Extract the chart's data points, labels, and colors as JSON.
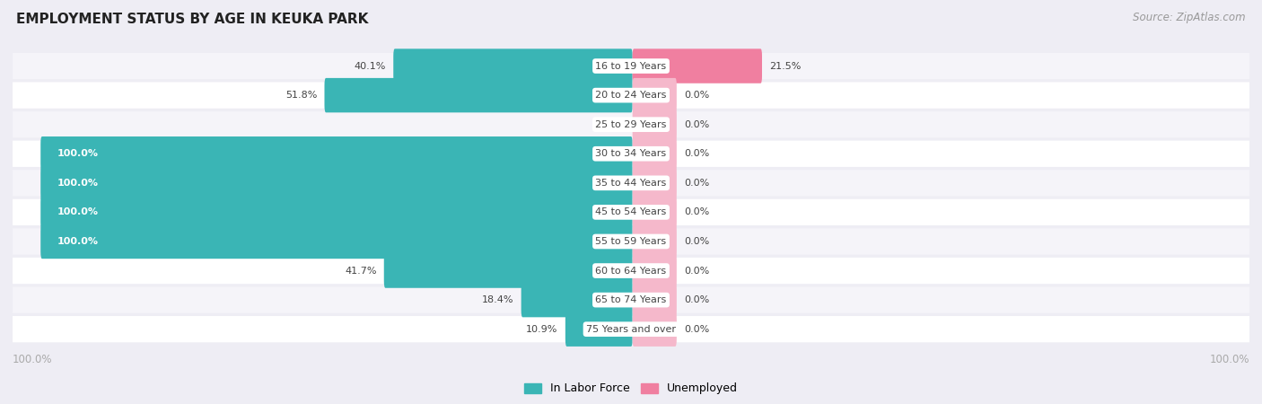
{
  "title": "EMPLOYMENT STATUS BY AGE IN KEUKA PARK",
  "source": "Source: ZipAtlas.com",
  "categories": [
    "16 to 19 Years",
    "20 to 24 Years",
    "25 to 29 Years",
    "30 to 34 Years",
    "35 to 44 Years",
    "45 to 54 Years",
    "55 to 59 Years",
    "60 to 64 Years",
    "65 to 74 Years",
    "75 Years and over"
  ],
  "labor_force": [
    40.1,
    51.8,
    0.0,
    100.0,
    100.0,
    100.0,
    100.0,
    41.7,
    18.4,
    10.9
  ],
  "unemployed": [
    21.5,
    0.0,
    0.0,
    0.0,
    0.0,
    0.0,
    0.0,
    0.0,
    0.0,
    0.0
  ],
  "labor_force_color": "#3ab5b5",
  "unemployed_color": "#f07fa0",
  "unemployed_placeholder_color": "#f5b8cb",
  "bg_color": "#eeedf4",
  "row_bg_color": "#ffffff",
  "row_stripe_color": "#f5f4f9",
  "title_color": "#222222",
  "source_color": "#999999",
  "label_color": "#444444",
  "axis_label_color": "#aaaaaa",
  "white_label_color": "#ffffff"
}
